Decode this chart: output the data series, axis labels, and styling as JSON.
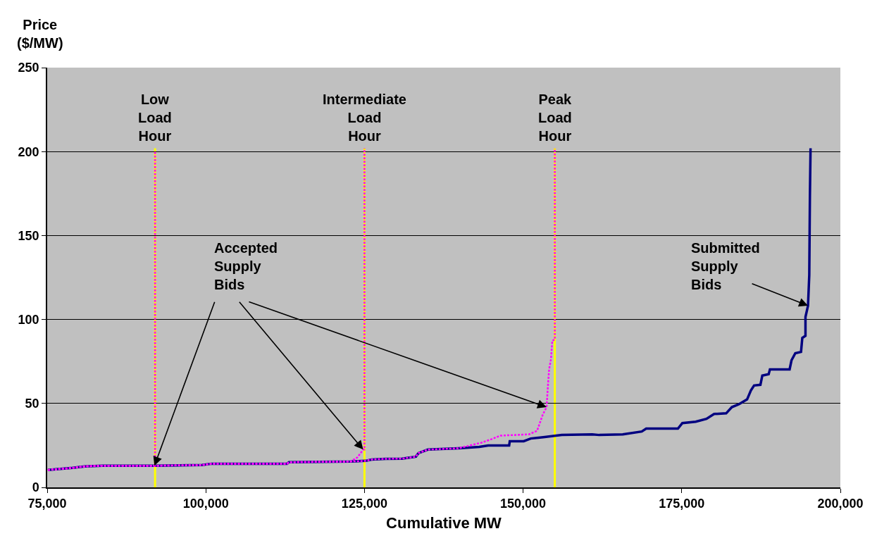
{
  "chart_data": {
    "type": "line",
    "xlabel": "Cumulative MW",
    "ylabel": "Price ($/MW)",
    "xlim": [
      75000,
      200000
    ],
    "xticks": [
      {
        "value": 75000,
        "label": "75,000"
      },
      {
        "value": 100000,
        "label": "100,000"
      },
      {
        "value": 125000,
        "label": "125,000"
      },
      {
        "value": 150000,
        "label": "150,000"
      },
      {
        "value": 175000,
        "label": "175,000"
      },
      {
        "value": 200000,
        "label": "200,000"
      }
    ],
    "ylim": [
      0,
      250
    ],
    "yticks": [
      0,
      50,
      100,
      150,
      200,
      250
    ],
    "grid": "y",
    "marker": "none",
    "series": [
      {
        "color": "#000080",
        "line_style": "solid",
        "x": [
          75100,
          79000,
          80900,
          83700,
          91900,
          99400,
          100900,
          112800,
          113100,
          122800,
          125200,
          126100,
          128300,
          130900,
          133100,
          133500,
          135000,
          139800,
          143100,
          144500,
          147800,
          147900,
          150100,
          151200,
          153400,
          156100,
          160900,
          162000,
          165700,
          168700,
          169400,
          174400,
          175100,
          177200,
          178900,
          180100,
          182000,
          182900,
          184000,
          185300,
          185900,
          186400,
          187400,
          187700,
          188700,
          188900,
          192000,
          192300,
          192900,
          193800,
          194000,
          194500,
          194500,
          194900,
          195100,
          195200,
          195300
        ],
        "values": [
          10.4,
          11.6,
          12.5,
          12.9,
          12.9,
          13.3,
          14.1,
          14.1,
          15,
          15.4,
          15.8,
          16.6,
          17,
          17.1,
          18.3,
          20.4,
          22.5,
          23.3,
          24.1,
          25,
          25,
          27.5,
          27.5,
          29.1,
          30,
          31.2,
          31.6,
          31.2,
          31.6,
          33.3,
          35,
          35,
          38.3,
          39.1,
          40.8,
          43.7,
          44.1,
          47.8,
          49.5,
          52.4,
          57.8,
          60.7,
          61.1,
          66.6,
          67.4,
          70.3,
          70.3,
          75.7,
          79.9,
          80.7,
          89,
          90.3,
          101.5,
          108.2,
          126.5,
          173.5,
          202
        ]
      },
      {
        "color": "#ff00ff",
        "line_style": "dotted",
        "x": [
          75100,
          79000,
          80900,
          83700,
          91900,
          92000,
          92000
        ],
        "values": [
          10.4,
          11.6,
          12.5,
          12.9,
          12.9,
          12.9,
          200
        ]
      },
      {
        "color": "#ff00ff",
        "line_style": "dotted",
        "x": [
          75100,
          79000,
          80900,
          83700,
          91900,
          99400,
          100900,
          112800,
          113100,
          122800,
          123900,
          124800,
          125000,
          125000
        ],
        "values": [
          10.4,
          11.6,
          12.5,
          12.9,
          12.9,
          13.3,
          14.1,
          14.1,
          15,
          15.4,
          17.9,
          22.5,
          22.5,
          202
        ]
      },
      {
        "color": "#ff00ff",
        "line_style": "dotted",
        "x": [
          75100,
          79000,
          80900,
          83700,
          91900,
          99400,
          100900,
          112800,
          113100,
          122800,
          125200,
          126100,
          128300,
          130900,
          133100,
          133500,
          135000,
          139800,
          143400,
          145000,
          146400,
          150900,
          152200,
          153100,
          153700,
          153900,
          154100,
          154400,
          154600,
          155000,
          155000
        ],
        "values": [
          10.4,
          11.6,
          12.5,
          12.9,
          12.9,
          13.3,
          14.1,
          14.1,
          15,
          15.4,
          15.8,
          16.6,
          17,
          17.1,
          18.3,
          20.4,
          22.5,
          23.3,
          26.6,
          28.7,
          30.8,
          31.6,
          33.7,
          43.3,
          47.8,
          59.9,
          70.3,
          76.5,
          87.4,
          88,
          202
        ]
      }
    ],
    "ref_lines": [
      {
        "axis": "x",
        "value": 92000,
        "label": "Low Load Hour",
        "color": "#ffff00"
      },
      {
        "axis": "x",
        "value": 125000,
        "label": "Intermediate Load Hour",
        "color": "#ffff00"
      },
      {
        "axis": "x",
        "value": 155000,
        "label": "Peak Load Hour",
        "color": "#ffff00"
      }
    ],
    "annotations": [
      {
        "text": "Accepted Supply Bids",
        "x": 153700,
        "y": 47.8
      },
      {
        "text": "Submitted Supply Bids",
        "x": 194900,
        "y": 108.2
      }
    ]
  }
}
